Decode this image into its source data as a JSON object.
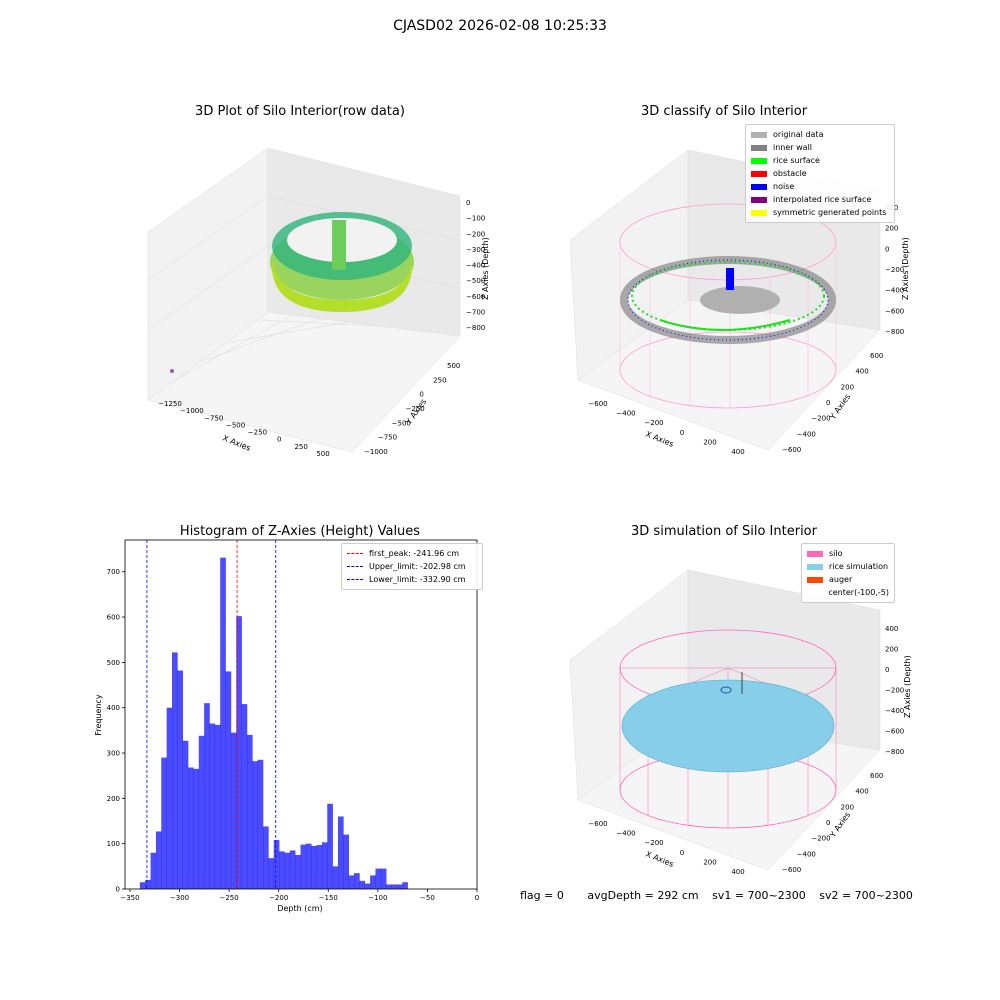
{
  "suptitle": "CJASD02 2026-02-08 10:25:33",
  "panel_titles": {
    "raw": "3D Plot of Silo Interior(row data)",
    "classify": "3D classify of Silo Interior",
    "histogram": "Histogram of Z-Axies (Height) Values",
    "simulation": "3D simulation of Silo Interior"
  },
  "axis_labels": {
    "x": "X Axies",
    "y": "Y Axies",
    "z": "Z Axies (Depth)",
    "hist_x": "Depth (cm)",
    "hist_y": "Frequency"
  },
  "raw_ticks": {
    "x": [
      "−1250",
      "−1000",
      "−750",
      "−500",
      "−250",
      "0",
      "250",
      "500"
    ],
    "y": [
      "500",
      "250",
      "0",
      "−250",
      "−500",
      "−750",
      "−1000"
    ],
    "z": [
      "0",
      "−100",
      "−200",
      "−300",
      "−400",
      "−500",
      "−600",
      "−700",
      "−800"
    ]
  },
  "classify_ticks": {
    "x": [
      "−600",
      "−400",
      "−200",
      "0",
      "200",
      "400"
    ],
    "y": [
      "600",
      "400",
      "200",
      "0",
      "−200",
      "−400",
      "−600"
    ],
    "z": [
      "400",
      "200",
      "0",
      "−200",
      "−400",
      "−600",
      "−800"
    ]
  },
  "sim_ticks": {
    "x": [
      "−600",
      "−400",
      "−200",
      "0",
      "200",
      "400"
    ],
    "y": [
      "600",
      "400",
      "200",
      "0",
      "−200",
      "−400",
      "−600"
    ],
    "z": [
      "400",
      "200",
      "0",
      "−200",
      "−400",
      "−600",
      "−800"
    ]
  },
  "classify_legend": [
    {
      "label": "original data",
      "color": "#b0b0b0"
    },
    {
      "label": "inner wall",
      "color": "#808080"
    },
    {
      "label": "rice surface",
      "color": "#00ff00"
    },
    {
      "label": "obstacle",
      "color": "#ff0000"
    },
    {
      "label": "noise",
      "color": "#0000ff"
    },
    {
      "label": "interpolated rice surface",
      "color": "#800080"
    },
    {
      "label": "symmetric generated points",
      "color": "#ffff00"
    }
  ],
  "sim_legend": [
    {
      "label": "silo",
      "color": "#ff69b4"
    },
    {
      "label": "rice simulation",
      "color": "#87ceeb"
    },
    {
      "label": "auger",
      "color": "#ff4500"
    },
    {
      "label": "center(-100,-5)",
      "color": ""
    }
  ],
  "status": {
    "flag": "flag = 0",
    "avg": "avgDepth = 292 cm",
    "sv1": "sv1 = 700~2300",
    "sv2": "sv2 = 700~2300"
  },
  "chart_data": {
    "type": "bar",
    "title": "Histogram of Z-Axies (Height) Values",
    "xlabel": "Depth (cm)",
    "ylabel": "Frequency",
    "xlim": [
      -355,
      0
    ],
    "ylim": [
      0,
      770
    ],
    "xticks": [
      -350,
      -300,
      -250,
      -200,
      -150,
      -100,
      -50,
      0
    ],
    "yticks": [
      0,
      100,
      200,
      300,
      400,
      500,
      600,
      700
    ],
    "bin_start": -340,
    "bin_width": 5.4,
    "values": [
      15,
      20,
      80,
      127,
      290,
      400,
      522,
      482,
      327,
      268,
      265,
      338,
      410,
      365,
      362,
      731,
      480,
      345,
      602,
      408,
      340,
      282,
      285,
      138,
      68,
      108,
      83,
      80,
      85,
      75,
      98,
      100,
      95,
      97,
      103,
      188,
      50,
      160,
      120,
      30,
      35,
      18,
      12,
      30,
      45,
      45,
      10,
      10,
      10,
      15
    ],
    "bar_color": "#0000ff",
    "lines": [
      {
        "label": "first_peak: -241.96 cm",
        "x": -241.96,
        "color": "#ff0000"
      },
      {
        "label": "Upper_limit: -202.98 cm",
        "x": -202.98,
        "color": "#0000ff"
      },
      {
        "label": "Lower_limit: -332.90 cm",
        "x": -332.9,
        "color": "#0000ff"
      }
    ],
    "legend_position": "upper right"
  }
}
